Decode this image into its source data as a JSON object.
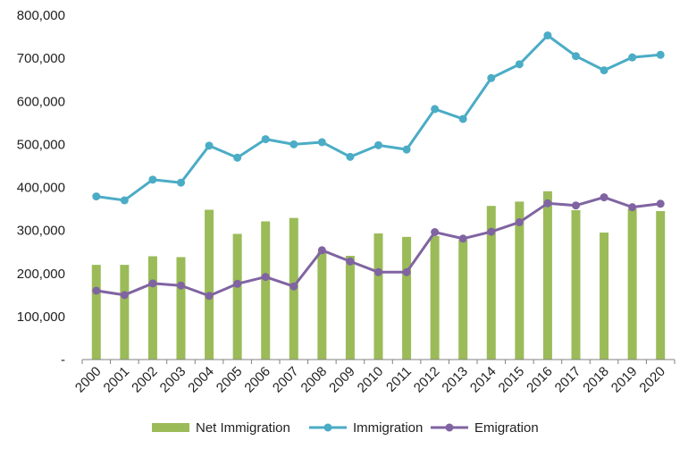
{
  "chart_data": {
    "type": "bar+line",
    "title": "",
    "xlabel": "",
    "ylabel": "",
    "ylim": [
      0,
      800000
    ],
    "yticks": [
      0,
      100000,
      200000,
      300000,
      400000,
      500000,
      600000,
      700000,
      800000
    ],
    "ytick_labels": [
      "-",
      "100,000",
      "200,000",
      "300,000",
      "400,000",
      "500,000",
      "600,000",
      "700,000",
      "800,000"
    ],
    "categories": [
      "2000",
      "2001",
      "2002",
      "2003",
      "2004",
      "2005",
      "2006",
      "2007",
      "2008",
      "2009",
      "2010",
      "2011",
      "2012",
      "2013",
      "2014",
      "2015",
      "2016",
      "2017",
      "2018",
      "2019",
      "2020"
    ],
    "series": [
      {
        "name": "Net Immigration",
        "kind": "bar",
        "color": "#9bbb59",
        "values": [
          220000,
          220000,
          240000,
          238000,
          348000,
          292000,
          321000,
          329000,
          250000,
          241000,
          293000,
          285000,
          287000,
          278000,
          357000,
          367000,
          391000,
          347000,
          295000,
          350000,
          345000
        ]
      },
      {
        "name": "Immigration",
        "kind": "line",
        "color": "#4bacc6",
        "values": [
          379000,
          370000,
          418000,
          411000,
          497000,
          469000,
          512000,
          500000,
          505000,
          471000,
          498000,
          488000,
          582000,
          559000,
          654000,
          686000,
          753000,
          705000,
          672000,
          702000,
          708000
        ]
      },
      {
        "name": "Emigration",
        "kind": "line",
        "color": "#8064a2",
        "values": [
          160000,
          150000,
          177000,
          172000,
          148000,
          176000,
          192000,
          170000,
          254000,
          228000,
          203000,
          203000,
          296000,
          281000,
          297000,
          319000,
          363000,
          358000,
          377000,
          354000,
          362000
        ]
      }
    ],
    "legend": [
      "Net Immigration",
      "Immigration",
      "Emigration"
    ],
    "legend_position": "bottom",
    "grid": false
  }
}
